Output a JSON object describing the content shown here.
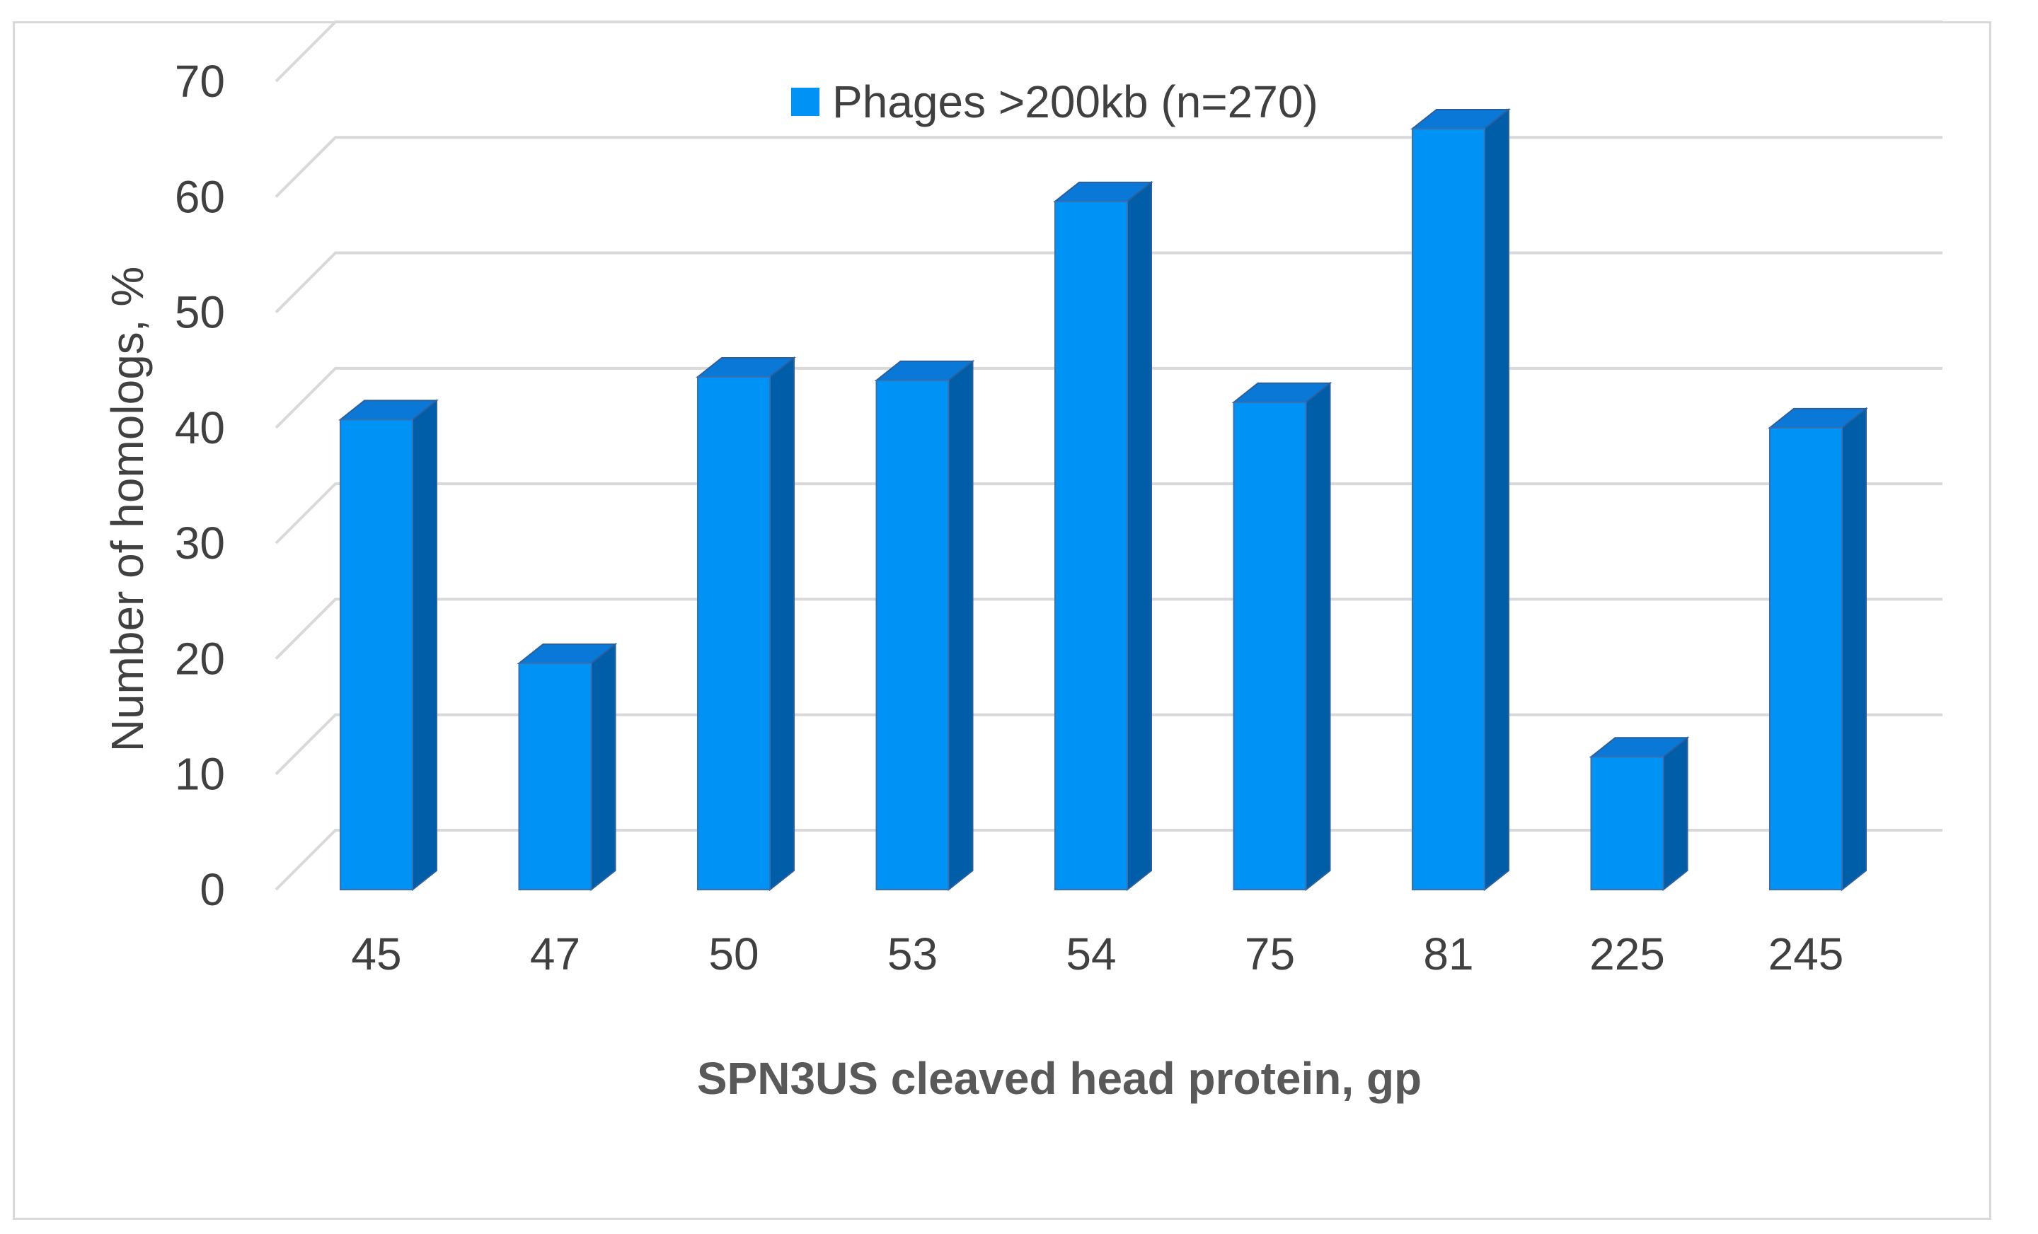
{
  "chart_data": {
    "type": "bar",
    "style": "3d-column",
    "categories": [
      "45",
      "47",
      "50",
      "53",
      "54",
      "75",
      "81",
      "225",
      "245"
    ],
    "series": [
      {
        "name": "Phages >200kb (n=270)",
        "color": "#0093f6",
        "side_color": "#005ea8",
        "top_color": "#0a78d6",
        "values": [
          40.7,
          19.6,
          44.4,
          44.1,
          59.6,
          42.2,
          65.9,
          11.5,
          40.0
        ]
      }
    ],
    "xlabel": "SPN3US cleaved head protein, gp",
    "ylabel": "Number of homologs, %",
    "ylim": [
      0,
      70
    ],
    "yticks": [
      0,
      10,
      20,
      30,
      40,
      50,
      60,
      70
    ],
    "grid": true,
    "legend_position": "top-center"
  }
}
